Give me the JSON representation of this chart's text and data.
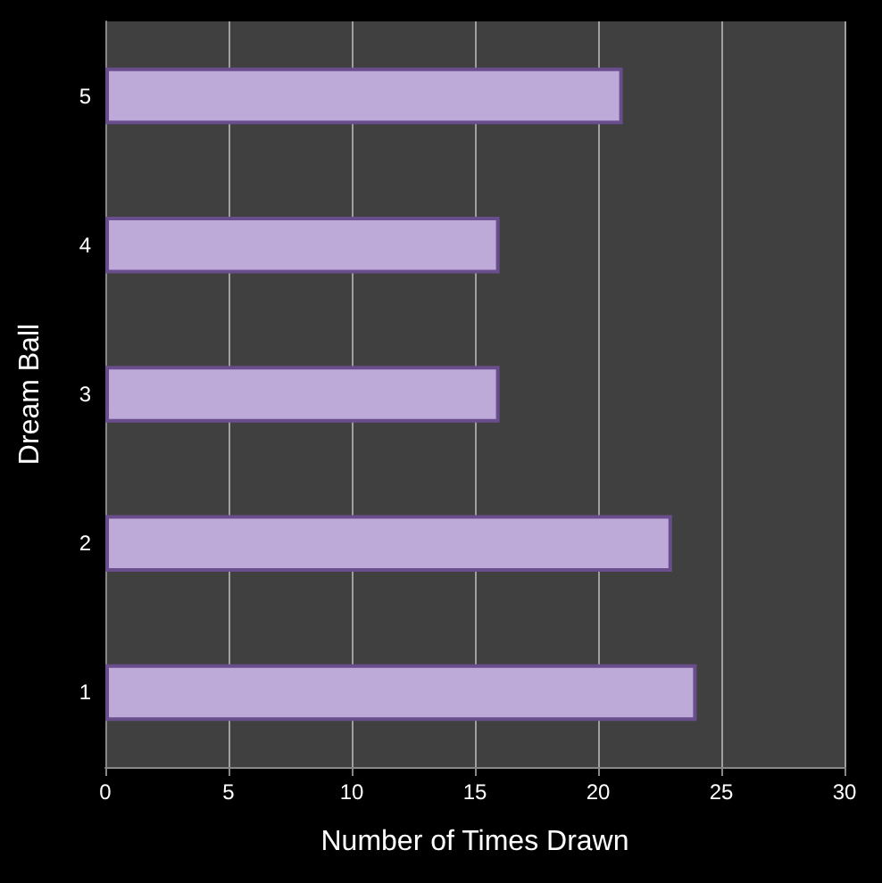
{
  "chart_data": {
    "type": "bar",
    "orientation": "horizontal",
    "categories": [
      "5",
      "4",
      "3",
      "2",
      "1"
    ],
    "values": [
      21,
      16,
      16,
      23,
      24
    ],
    "color": "#bdaad9",
    "xlim": [
      0,
      30
    ],
    "xticks": [
      0,
      5,
      10,
      15,
      20,
      25,
      30
    ],
    "xlabel": "Number of Times Drawn",
    "ylabel": "Dream Ball",
    "grid": "x"
  }
}
